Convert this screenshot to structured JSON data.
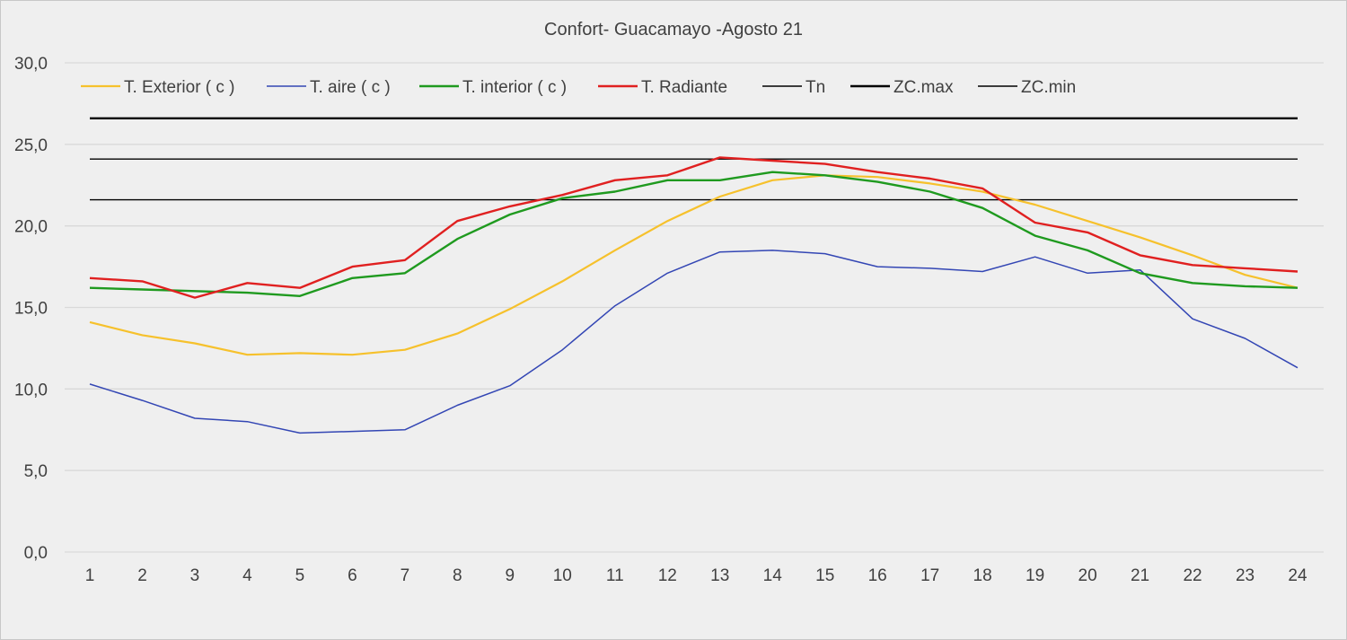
{
  "chart_data": {
    "type": "line",
    "title": "Confort- Guacamayo -Agosto 21",
    "xlabel": "",
    "ylabel": "",
    "ylim": [
      0,
      30
    ],
    "yticks": [
      0,
      5,
      10,
      15,
      20,
      25,
      30
    ],
    "ytick_labels": [
      "0,0",
      "5,0",
      "10,0",
      "15,0",
      "20,0",
      "25,0",
      "30,0"
    ],
    "x": [
      1,
      2,
      3,
      4,
      5,
      6,
      7,
      8,
      9,
      10,
      11,
      12,
      13,
      14,
      15,
      16,
      17,
      18,
      19,
      20,
      21,
      22,
      23,
      24
    ],
    "x_labels": [
      "1",
      "2",
      "3",
      "4",
      "5",
      "6",
      "7",
      "8",
      "9",
      "10",
      "11",
      "12",
      "13",
      "14",
      "15",
      "16",
      "17",
      "18",
      "19",
      "20",
      "21",
      "22",
      "23",
      "24"
    ],
    "grid": "horizontal",
    "legend_position": "top",
    "series": [
      {
        "name": "T. Exterior ( c )",
        "color": "#f6c12c",
        "values": [
          14.1,
          13.3,
          12.8,
          12.1,
          12.2,
          12.1,
          12.4,
          13.4,
          14.9,
          16.6,
          18.5,
          20.3,
          21.8,
          22.8,
          23.1,
          23.0,
          22.6,
          22.1,
          21.3,
          20.3,
          19.3,
          18.2,
          17.0,
          16.2
        ]
      },
      {
        "name": "T. aire ( c )",
        "color": "#3346b4",
        "values": [
          10.3,
          9.3,
          8.2,
          8.0,
          7.3,
          7.4,
          7.5,
          9.0,
          10.2,
          12.4,
          15.1,
          17.1,
          18.4,
          18.5,
          18.3,
          17.5,
          17.4,
          17.2,
          18.1,
          17.1,
          17.3,
          14.3,
          13.1,
          11.3
        ]
      },
      {
        "name": "T. interior ( c )",
        "color": "#1f9a1f",
        "values": [
          16.2,
          16.1,
          16.0,
          15.9,
          15.7,
          16.8,
          17.1,
          19.2,
          20.7,
          21.7,
          22.1,
          22.8,
          22.8,
          23.3,
          23.1,
          22.7,
          22.1,
          21.1,
          19.4,
          18.5,
          17.1,
          16.5,
          16.3,
          16.2
        ]
      },
      {
        "name": "T. Radiante",
        "color": "#e02020",
        "values": [
          16.8,
          16.6,
          15.6,
          16.5,
          16.2,
          17.5,
          17.9,
          20.3,
          21.2,
          21.9,
          22.8,
          23.1,
          24.2,
          24.0,
          23.8,
          23.3,
          22.9,
          22.3,
          20.2,
          19.6,
          18.2,
          17.6,
          17.4,
          17.2
        ]
      },
      {
        "name": "Tn",
        "color": "#000000",
        "values": [
          24.1,
          24.1,
          24.1,
          24.1,
          24.1,
          24.1,
          24.1,
          24.1,
          24.1,
          24.1,
          24.1,
          24.1,
          24.1,
          24.1,
          24.1,
          24.1,
          24.1,
          24.1,
          24.1,
          24.1,
          24.1,
          24.1,
          24.1,
          24.1
        ]
      },
      {
        "name": "ZC.max",
        "color": "#000000",
        "values": [
          26.6,
          26.6,
          26.6,
          26.6,
          26.6,
          26.6,
          26.6,
          26.6,
          26.6,
          26.6,
          26.6,
          26.6,
          26.6,
          26.6,
          26.6,
          26.6,
          26.6,
          26.6,
          26.6,
          26.6,
          26.6,
          26.6,
          26.6,
          26.6
        ]
      },
      {
        "name": "ZC.min",
        "color": "#000000",
        "values": [
          21.6,
          21.6,
          21.6,
          21.6,
          21.6,
          21.6,
          21.6,
          21.6,
          21.6,
          21.6,
          21.6,
          21.6,
          21.6,
          21.6,
          21.6,
          21.6,
          21.6,
          21.6,
          21.6,
          21.6,
          21.6,
          21.6,
          21.6,
          21.6
        ]
      }
    ]
  }
}
